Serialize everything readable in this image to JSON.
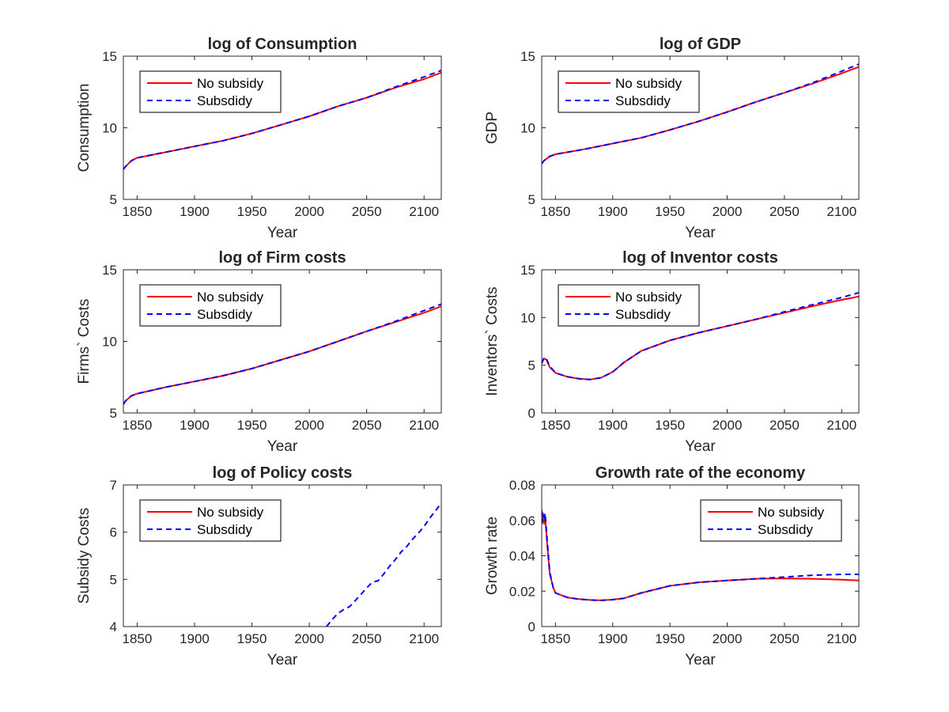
{
  "figure": {
    "background": "#ffffff"
  },
  "legend_entries": [
    "No subsidy",
    "Subsdidy"
  ],
  "series_colors": {
    "no_subsidy": "#ff0000",
    "subsidy": "#0000ff"
  },
  "chart_data": [
    {
      "type": "line",
      "title": "log of Consumption",
      "xlabel": "Year",
      "ylabel": "Consumption",
      "xlim": [
        1838,
        2115
      ],
      "ylim": [
        5,
        15
      ],
      "xticks": [
        1850,
        1900,
        1950,
        2000,
        2050,
        2100
      ],
      "yticks": [
        5,
        10,
        15
      ],
      "legend": "upper-left",
      "series": [
        {
          "name": "No subsidy",
          "style": "solid",
          "x": [
            1838,
            1840,
            1845,
            1850,
            1875,
            1900,
            1925,
            1950,
            1975,
            2000,
            2025,
            2050,
            2075,
            2100,
            2115
          ],
          "y": [
            7.1,
            7.3,
            7.7,
            7.9,
            8.3,
            8.7,
            9.1,
            9.6,
            10.2,
            10.8,
            11.5,
            12.1,
            12.8,
            13.4,
            13.85
          ]
        },
        {
          "name": "Subsdidy",
          "style": "dashed",
          "x": [
            1838,
            1840,
            1845,
            1850,
            1875,
            1900,
            1925,
            1950,
            1975,
            2000,
            2025,
            2050,
            2075,
            2100,
            2115
          ],
          "y": [
            7.1,
            7.3,
            7.7,
            7.9,
            8.3,
            8.7,
            9.1,
            9.6,
            10.2,
            10.8,
            11.5,
            12.1,
            12.85,
            13.55,
            14.0
          ]
        }
      ]
    },
    {
      "type": "line",
      "title": "log of GDP",
      "xlabel": "Year",
      "ylabel": "GDP",
      "xlim": [
        1838,
        2115
      ],
      "ylim": [
        5,
        15
      ],
      "xticks": [
        1850,
        1900,
        1950,
        2000,
        2050,
        2100
      ],
      "yticks": [
        5,
        10,
        15
      ],
      "legend": "upper-left",
      "series": [
        {
          "name": "No subsidy",
          "style": "solid",
          "x": [
            1838,
            1840,
            1845,
            1850,
            1875,
            1900,
            1925,
            1950,
            1975,
            2000,
            2025,
            2050,
            2075,
            2100,
            2115
          ],
          "y": [
            7.5,
            7.7,
            8.0,
            8.15,
            8.5,
            8.9,
            9.3,
            9.85,
            10.45,
            11.1,
            11.8,
            12.45,
            13.1,
            13.8,
            14.25
          ]
        },
        {
          "name": "Subsdidy",
          "style": "dashed",
          "x": [
            1838,
            1840,
            1845,
            1850,
            1875,
            1900,
            1925,
            1950,
            1975,
            2000,
            2025,
            2050,
            2075,
            2100,
            2115
          ],
          "y": [
            7.5,
            7.7,
            8.0,
            8.15,
            8.5,
            8.9,
            9.3,
            9.85,
            10.45,
            11.1,
            11.8,
            12.45,
            13.15,
            13.95,
            14.45
          ]
        }
      ]
    },
    {
      "type": "line",
      "title": "log of Firm costs",
      "xlabel": "Year",
      "ylabel": "Firms` Costs",
      "xlim": [
        1838,
        2115
      ],
      "ylim": [
        5,
        15
      ],
      "xticks": [
        1850,
        1900,
        1950,
        2000,
        2050,
        2100
      ],
      "yticks": [
        5,
        10,
        15
      ],
      "legend": "upper-left",
      "series": [
        {
          "name": "No subsidy",
          "style": "solid",
          "x": [
            1838,
            1840,
            1845,
            1850,
            1875,
            1900,
            1925,
            1950,
            1975,
            2000,
            2025,
            2050,
            2075,
            2100,
            2115
          ],
          "y": [
            5.6,
            5.85,
            6.2,
            6.35,
            6.8,
            7.2,
            7.6,
            8.1,
            8.7,
            9.3,
            10.0,
            10.7,
            11.35,
            12.0,
            12.45
          ]
        },
        {
          "name": "Subsdidy",
          "style": "dashed",
          "x": [
            1838,
            1840,
            1845,
            1850,
            1875,
            1900,
            1925,
            1950,
            1975,
            2000,
            2025,
            2050,
            2075,
            2100,
            2115
          ],
          "y": [
            5.6,
            5.85,
            6.2,
            6.35,
            6.8,
            7.2,
            7.6,
            8.1,
            8.7,
            9.3,
            10.0,
            10.7,
            11.4,
            12.15,
            12.6
          ]
        }
      ]
    },
    {
      "type": "line",
      "title": "log of Inventor costs",
      "xlabel": "Year",
      "ylabel": "Inventors` Costs",
      "xlim": [
        1838,
        2115
      ],
      "ylim": [
        0,
        15
      ],
      "xticks": [
        1850,
        1900,
        1950,
        2000,
        2050,
        2100
      ],
      "yticks": [
        0,
        5,
        10,
        15
      ],
      "legend": "upper-left",
      "series": [
        {
          "name": "No subsidy",
          "style": "solid",
          "x": [
            1838,
            1840,
            1842,
            1845,
            1850,
            1860,
            1870,
            1880,
            1890,
            1900,
            1910,
            1925,
            1950,
            1975,
            2000,
            2025,
            2050,
            2075,
            2100,
            2115
          ],
          "y": [
            5.2,
            5.7,
            5.6,
            4.8,
            4.2,
            3.8,
            3.6,
            3.5,
            3.7,
            4.3,
            5.3,
            6.5,
            7.6,
            8.4,
            9.1,
            9.8,
            10.5,
            11.2,
            11.85,
            12.2
          ]
        },
        {
          "name": "Subsdidy",
          "style": "dashed",
          "x": [
            1838,
            1840,
            1842,
            1845,
            1850,
            1860,
            1870,
            1880,
            1890,
            1900,
            1910,
            1925,
            1950,
            1975,
            2000,
            2025,
            2050,
            2075,
            2100,
            2115
          ],
          "y": [
            5.2,
            5.8,
            5.7,
            4.9,
            4.2,
            3.8,
            3.6,
            3.5,
            3.7,
            4.3,
            5.3,
            6.5,
            7.6,
            8.4,
            9.1,
            9.8,
            10.6,
            11.35,
            12.1,
            12.6
          ]
        }
      ]
    },
    {
      "type": "line",
      "title": "log of Policy costs",
      "xlabel": "Year",
      "ylabel": "Subsidy Costs",
      "xlim": [
        1838,
        2115
      ],
      "ylim": [
        4,
        7
      ],
      "xticks": [
        1850,
        1900,
        1950,
        2000,
        2050,
        2100
      ],
      "yticks": [
        4,
        5,
        6,
        7
      ],
      "legend": "upper-left",
      "series": [
        {
          "name": "No subsidy",
          "style": "solid",
          "x": [],
          "y": []
        },
        {
          "name": "Subsdidy",
          "style": "dashed",
          "x": [
            2015,
            2020,
            2025,
            2030,
            2035,
            2040,
            2045,
            2050,
            2055,
            2060,
            2065,
            2070,
            2075,
            2080,
            2085,
            2090,
            2095,
            2100,
            2105,
            2110,
            2115
          ],
          "y": [
            4.0,
            4.15,
            4.28,
            4.36,
            4.42,
            4.55,
            4.68,
            4.82,
            4.94,
            4.97,
            5.12,
            5.28,
            5.42,
            5.58,
            5.7,
            5.85,
            5.98,
            6.12,
            6.3,
            6.45,
            6.62
          ]
        }
      ]
    },
    {
      "type": "line",
      "title": "Growth rate of the economy",
      "xlabel": "Year",
      "ylabel": "Growth rate",
      "xlim": [
        1838,
        2115
      ],
      "ylim": [
        0,
        0.08
      ],
      "xticks": [
        1850,
        1900,
        1950,
        2000,
        2050,
        2100
      ],
      "yticks": [
        0,
        0.02,
        0.04,
        0.06,
        0.08
      ],
      "ytick_labels": [
        "0",
        "0.02",
        "0.04",
        "0.06",
        "0.08"
      ],
      "legend": "upper-right",
      "series": [
        {
          "name": "No subsidy",
          "style": "solid",
          "x": [
            1838,
            1839,
            1840,
            1841,
            1843,
            1845,
            1848,
            1850,
            1860,
            1870,
            1880,
            1890,
            1900,
            1910,
            1925,
            1950,
            1975,
            2000,
            2025,
            2050,
            2075,
            2100,
            2115
          ],
          "y": [
            0.066,
            0.06,
            0.058,
            0.062,
            0.045,
            0.03,
            0.022,
            0.019,
            0.0165,
            0.0155,
            0.015,
            0.0148,
            0.0152,
            0.016,
            0.019,
            0.023,
            0.025,
            0.026,
            0.027,
            0.0272,
            0.027,
            0.0265,
            0.026
          ]
        },
        {
          "name": "Subsdidy",
          "style": "dashed",
          "x": [
            1838,
            1839,
            1840,
            1841,
            1843,
            1845,
            1848,
            1850,
            1860,
            1870,
            1880,
            1890,
            1900,
            1910,
            1925,
            1950,
            1975,
            2000,
            2025,
            2050,
            2075,
            2100,
            2115
          ],
          "y": [
            0.058,
            0.064,
            0.06,
            0.064,
            0.047,
            0.031,
            0.022,
            0.019,
            0.0165,
            0.0155,
            0.015,
            0.0148,
            0.0152,
            0.016,
            0.019,
            0.023,
            0.025,
            0.026,
            0.027,
            0.028,
            0.029,
            0.0295,
            0.0295
          ]
        }
      ]
    }
  ]
}
